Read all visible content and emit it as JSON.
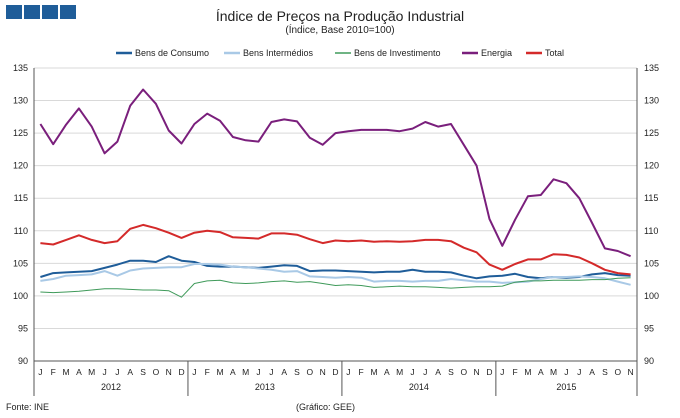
{
  "header": {
    "logo_label": "INE logo",
    "title": "Índice de Preços na Produção Industrial",
    "subtitle": "(Índice, Base 2010=100)"
  },
  "footer": {
    "source": "Fonte: INE",
    "credit": "(Gráfico: GEE)"
  },
  "chart_data": {
    "type": "line",
    "title": "Índice de Preços na Produção Industrial",
    "subtitle": "(Índice, Base 2010=100)",
    "xlabel": "",
    "ylabel": "",
    "ylim": [
      90,
      135
    ],
    "yticks": [
      90,
      95,
      100,
      105,
      110,
      115,
      120,
      125,
      130,
      135
    ],
    "grid": "horizontal",
    "legend_position": "top",
    "month_labels": [
      "J",
      "F",
      "M",
      "A",
      "M",
      "J",
      "J",
      "A",
      "S",
      "O",
      "N",
      "D",
      "J",
      "F",
      "M",
      "A",
      "M",
      "J",
      "J",
      "A",
      "S",
      "O",
      "N",
      "D",
      "J",
      "F",
      "M",
      "A",
      "M",
      "J",
      "J",
      "A",
      "S",
      "O",
      "N",
      "D",
      "J",
      "F",
      "M",
      "A",
      "M",
      "J",
      "J",
      "A",
      "S",
      "O",
      "N"
    ],
    "years": [
      {
        "label": "2012",
        "months": 12
      },
      {
        "label": "2013",
        "months": 12
      },
      {
        "label": "2014",
        "months": 12
      },
      {
        "label": "2015",
        "months": 11
      }
    ],
    "series": [
      {
        "name": "Bens de Consumo",
        "color": "#1f5d99",
        "width": 2,
        "values": [
          102.9,
          103.5,
          103.6,
          103.7,
          103.8,
          104.3,
          104.8,
          105.4,
          105.4,
          105.2,
          106.1,
          105.4,
          105.2,
          104.6,
          104.5,
          104.5,
          104.4,
          104.3,
          104.5,
          104.7,
          104.6,
          103.8,
          103.9,
          103.9,
          103.8,
          103.7,
          103.6,
          103.7,
          103.7,
          104.0,
          103.7,
          103.7,
          103.6,
          103.1,
          102.7,
          103.0,
          103.1,
          103.4,
          102.9,
          102.7,
          102.9,
          102.8,
          102.9,
          103.3,
          103.5,
          103.2,
          103.1
        ]
      },
      {
        "name": "Bens Intermédios",
        "color": "#a9c9e6",
        "width": 2,
        "values": [
          102.3,
          102.6,
          103.1,
          103.2,
          103.3,
          103.8,
          103.1,
          103.9,
          104.2,
          104.3,
          104.4,
          104.4,
          104.9,
          104.9,
          104.8,
          104.5,
          104.4,
          104.2,
          104.0,
          103.7,
          103.8,
          103.0,
          102.9,
          102.8,
          102.9,
          102.8,
          102.2,
          102.3,
          102.3,
          102.2,
          102.3,
          102.3,
          102.6,
          102.4,
          102.2,
          102.2,
          102.0,
          102.1,
          102.2,
          102.6,
          102.9,
          102.9,
          103.0,
          102.9,
          102.7,
          102.2,
          101.7
        ]
      },
      {
        "name": "Bens de Investimento",
        "color": "#3f9a5a",
        "width": 1,
        "values": [
          100.6,
          100.5,
          100.6,
          100.7,
          100.9,
          101.1,
          101.1,
          101.0,
          100.9,
          100.9,
          100.8,
          99.8,
          101.9,
          102.3,
          102.4,
          102.0,
          101.9,
          102.0,
          102.2,
          102.3,
          102.1,
          102.2,
          101.9,
          101.6,
          101.7,
          101.6,
          101.3,
          101.4,
          101.5,
          101.4,
          101.4,
          101.3,
          101.2,
          101.3,
          101.4,
          101.4,
          101.5,
          102.1,
          102.3,
          102.3,
          102.4,
          102.4,
          102.4,
          102.5,
          102.5,
          102.7,
          102.8
        ]
      },
      {
        "name": "Energia",
        "color": "#7a1f7c",
        "width": 2,
        "values": [
          126.4,
          123.3,
          126.3,
          128.8,
          126.0,
          121.9,
          123.7,
          129.2,
          131.7,
          129.5,
          125.4,
          123.4,
          126.4,
          128.0,
          126.9,
          124.4,
          123.9,
          123.7,
          126.7,
          127.1,
          126.8,
          124.3,
          123.2,
          125.0,
          125.3,
          125.5,
          125.5,
          125.5,
          125.3,
          125.7,
          126.7,
          126.0,
          126.4,
          123.2,
          120.0,
          111.8,
          107.7,
          111.7,
          115.3,
          115.5,
          117.9,
          117.3,
          115.0,
          111.2,
          107.3,
          106.9,
          106.1
        ]
      },
      {
        "name": "Total",
        "color": "#d42a2a",
        "width": 2,
        "values": [
          108.1,
          107.9,
          108.6,
          109.3,
          108.6,
          108.1,
          108.4,
          110.3,
          110.9,
          110.4,
          109.7,
          108.9,
          109.7,
          110.0,
          109.8,
          109.0,
          108.9,
          108.8,
          109.6,
          109.6,
          109.4,
          108.7,
          108.1,
          108.5,
          108.4,
          108.5,
          108.3,
          108.4,
          108.3,
          108.4,
          108.6,
          108.6,
          108.4,
          107.4,
          106.7,
          104.8,
          104.0,
          104.9,
          105.6,
          105.6,
          106.4,
          106.3,
          105.9,
          105.0,
          104.0,
          103.5,
          103.3
        ]
      }
    ]
  }
}
